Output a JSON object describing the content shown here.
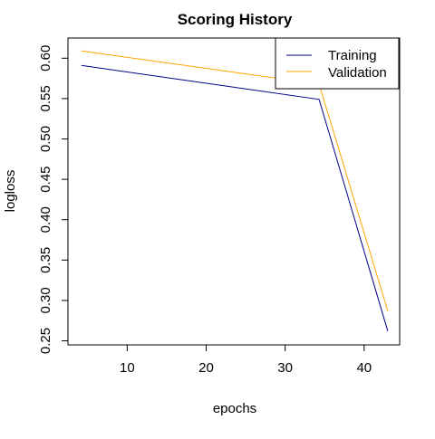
{
  "chart_data": {
    "type": "line",
    "title": "Scoring History",
    "xlabel": "epochs",
    "ylabel": "logloss",
    "xlim": [
      2.5,
      44.5
    ],
    "ylim": [
      0.245,
      0.625
    ],
    "xticks": [
      10,
      20,
      30,
      40
    ],
    "yticks": [
      0.25,
      0.3,
      0.35,
      0.4,
      0.45,
      0.5,
      0.55,
      0.6
    ],
    "ytick_labels": [
      "0.25",
      "0.30",
      "0.35",
      "0.40",
      "0.45",
      "0.50",
      "0.55",
      "0.60"
    ],
    "grid": false,
    "legend": {
      "position": "top-right"
    },
    "series": [
      {
        "name": "Training",
        "color": "#00008B",
        "x": [
          4.2,
          34.3,
          43
        ],
        "y": [
          0.591,
          0.549,
          0.262
        ]
      },
      {
        "name": "Validation",
        "color": "#FFA500",
        "x": [
          4.2,
          34.3,
          43
        ],
        "y": [
          0.609,
          0.568,
          0.287
        ]
      }
    ]
  }
}
